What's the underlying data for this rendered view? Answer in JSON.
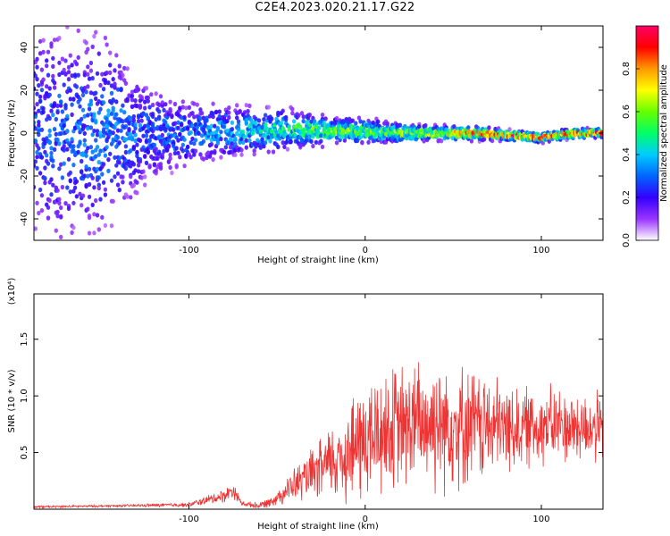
{
  "title": "C2E4.2023.020.21.17.G22",
  "chart_data": [
    {
      "type": "heatmap",
      "xlabel": "Height of straight line (km)",
      "ylabel": "Frequency (Hz)",
      "xlim": [
        -188,
        135
      ],
      "ylim": [
        -50,
        50
      ],
      "x_ticks": [
        -100,
        0,
        100
      ],
      "y_ticks": [
        -40,
        -20,
        0,
        20,
        40
      ],
      "colorbar": {
        "label": "Normalized spectral amplitude",
        "range": [
          0,
          1
        ],
        "ticks": [
          "0.0",
          "0.2",
          "0.4",
          "0.6",
          "0.8"
        ],
        "tick_values": [
          0.0,
          0.2,
          0.4,
          0.6,
          0.8
        ],
        "colors": [
          "#ffffff",
          "#9933ff",
          "#3300ff",
          "#0066ff",
          "#00ccff",
          "#00ff66",
          "#66ff00",
          "#ffff00",
          "#ff9900",
          "#ff0000",
          "#ff0066"
        ]
      },
      "ridge": {
        "x": [
          -188,
          -150,
          -120,
          -100,
          -80,
          -60,
          -40,
          -20,
          0,
          20,
          40,
          60,
          80,
          100,
          120,
          135
        ],
        "freq": [
          0,
          0,
          0,
          0,
          1,
          1,
          2,
          1,
          1,
          0,
          0,
          0,
          -1,
          -2,
          0,
          0
        ],
        "halfwidth": [
          50,
          45,
          20,
          14,
          12,
          10,
          8,
          6,
          5,
          4,
          3,
          3,
          2,
          2,
          2,
          2
        ],
        "peak_amplitude": [
          0.3,
          0.35,
          0.3,
          0.35,
          0.4,
          0.45,
          0.55,
          0.6,
          0.6,
          0.65,
          0.7,
          0.85,
          0.9,
          0.9,
          0.9,
          0.9
        ]
      }
    },
    {
      "type": "line",
      "xlabel": "Height of straight line (km)",
      "ylabel": "SNR (10 * v/v)",
      "y_multiplier": "(x10⁴)",
      "xlim": [
        -188,
        135
      ],
      "ylim": [
        0,
        1.9
      ],
      "x_ticks": [
        -100,
        0,
        100
      ],
      "y_ticks": [
        0.5,
        1.0,
        1.5
      ],
      "y_tick_labels": [
        "0.5",
        "1.0",
        "1.5"
      ],
      "series": [
        {
          "color": "#ee3333",
          "envelope_x": [
            -188,
            -140,
            -100,
            -90,
            -80,
            -75,
            -70,
            -60,
            -50,
            -40,
            -30,
            -20,
            -10,
            0,
            10,
            20,
            30,
            40,
            50,
            60,
            70,
            80,
            90,
            100,
            110,
            120,
            130,
            135
          ],
          "envelope_mean": [
            0.02,
            0.03,
            0.04,
            0.08,
            0.12,
            0.17,
            0.05,
            0.03,
            0.1,
            0.22,
            0.3,
            0.4,
            0.5,
            0.6,
            0.68,
            0.72,
            0.75,
            0.78,
            0.76,
            0.74,
            0.72,
            0.72,
            0.72,
            0.74,
            0.74,
            0.72,
            0.72,
            0.7
          ],
          "envelope_spread": [
            0.01,
            0.01,
            0.02,
            0.04,
            0.06,
            0.07,
            0.02,
            0.03,
            0.06,
            0.15,
            0.22,
            0.32,
            0.45,
            0.55,
            0.55,
            0.55,
            0.55,
            0.6,
            0.55,
            0.5,
            0.45,
            0.4,
            0.35,
            0.35,
            0.33,
            0.32,
            0.3,
            0.3
          ]
        }
      ]
    }
  ]
}
